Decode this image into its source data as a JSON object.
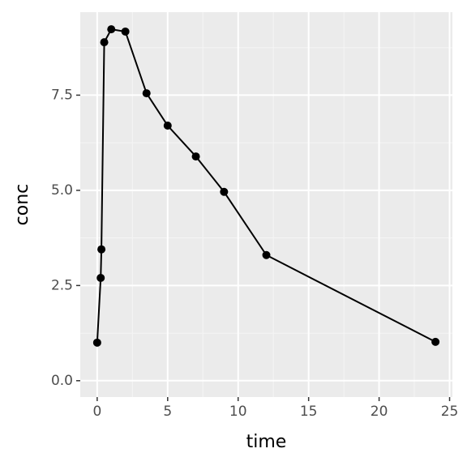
{
  "chart_data": {
    "type": "line",
    "x_label": "time",
    "y_label": "conc",
    "x": [
      0,
      0.25,
      0.3,
      0.5,
      1,
      2,
      3.5,
      5,
      7,
      9,
      12,
      24
    ],
    "series": [
      {
        "color": "#000000",
        "values": [
          1.0,
          2.7,
          3.45,
          8.89,
          9.23,
          9.17,
          7.55,
          6.7,
          5.89,
          4.96,
          3.3,
          1.02
        ]
      }
    ],
    "xlim": [
      -1.2,
      25.2
    ],
    "xticks": [
      0,
      5,
      10,
      15,
      20,
      25
    ],
    "ylim": [
      -0.43,
      9.68
    ],
    "yticks": [
      {
        "value": 0,
        "label": "0.0"
      },
      {
        "value": 2.5,
        "label": "2.5"
      },
      {
        "value": 5,
        "label": "5.0"
      },
      {
        "value": 7.5,
        "label": "7.5"
      }
    ],
    "grid": true
  }
}
